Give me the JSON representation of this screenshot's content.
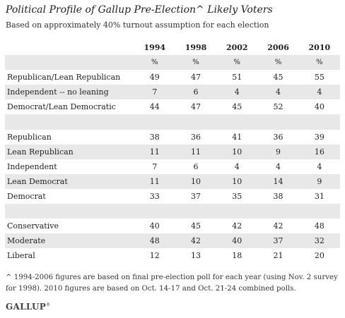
{
  "title": "Political Profile of Gallup Pre-Election^ Likely Voters",
  "subtitle": "Based on approximately 40% turnout assumption for each election",
  "footnote": "^ 1994-2006 figures are based on final pre-election poll for each year (using Nov. 2 survey for 1998). 2010 figures are based on Oct. 14-17 and Oct. 21-24 combined polls.",
  "logo": "GALLUP",
  "colors": {
    "stripe": "#e8e8e8",
    "text": "#222222"
  },
  "chart_data": {
    "type": "table",
    "columns": [
      "1994",
      "1998",
      "2002",
      "2006",
      "2010"
    ],
    "unit": "%",
    "groups": [
      {
        "rows": [
          {
            "label": "Republican/Lean Republican",
            "values": [
              49,
              47,
              51,
              45,
              55
            ]
          },
          {
            "label": "Independent -- no leaning",
            "values": [
              7,
              6,
              4,
              4,
              4
            ]
          },
          {
            "label": "Democrat/Lean Democratic",
            "values": [
              44,
              47,
              45,
              52,
              40
            ]
          }
        ]
      },
      {
        "rows": [
          {
            "label": "Republican",
            "values": [
              38,
              36,
              41,
              36,
              39
            ]
          },
          {
            "label": "Lean Republican",
            "values": [
              11,
              11,
              10,
              9,
              16
            ]
          },
          {
            "label": "Independent",
            "values": [
              7,
              6,
              4,
              4,
              4
            ]
          },
          {
            "label": "Lean Democrat",
            "values": [
              11,
              10,
              10,
              14,
              9
            ]
          },
          {
            "label": "Democrat",
            "values": [
              33,
              37,
              35,
              38,
              31
            ]
          }
        ]
      },
      {
        "rows": [
          {
            "label": "Conservative",
            "values": [
              40,
              45,
              42,
              42,
              48
            ]
          },
          {
            "label": "Moderate",
            "values": [
              48,
              42,
              40,
              37,
              32
            ]
          },
          {
            "label": "Liberal",
            "values": [
              12,
              13,
              18,
              21,
              20
            ]
          }
        ]
      }
    ]
  }
}
